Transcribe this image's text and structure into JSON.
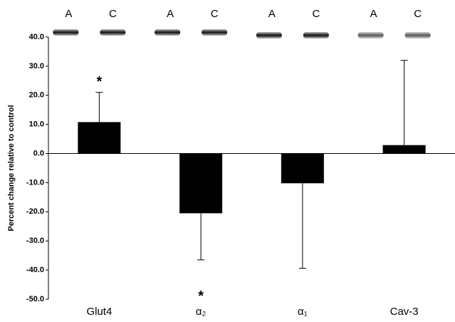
{
  "chart_data": {
    "type": "bar",
    "y_label": "Percent change relative to control",
    "categories": [
      "Glut4",
      "α₂",
      "α₁",
      "Cav-3"
    ],
    "values": [
      10.8,
      -20.5,
      -10.2,
      2.9
    ],
    "errors": [
      10.2,
      16,
      29.2,
      29.1
    ],
    "color": "#000000",
    "lane_labels": [
      "A",
      "C"
    ],
    "annotations": [
      "*",
      "*"
    ],
    "ylim": [
      -50,
      40
    ],
    "yticks": [
      {
        "value": -50,
        "label": "-50.0"
      },
      {
        "value": -40,
        "label": "-40.0"
      },
      {
        "value": -30,
        "label": "-30.0"
      },
      {
        "value": -20,
        "label": "-20.0"
      },
      {
        "value": -10,
        "label": "-10.0"
      },
      {
        "value": 0,
        "label": "0.0"
      },
      {
        "value": 10,
        "label": "10.0"
      },
      {
        "value": 20,
        "label": "20.0"
      },
      {
        "value": 30,
        "label": "30.0"
      },
      {
        "value": 40,
        "label": "40.0"
      }
    ]
  }
}
